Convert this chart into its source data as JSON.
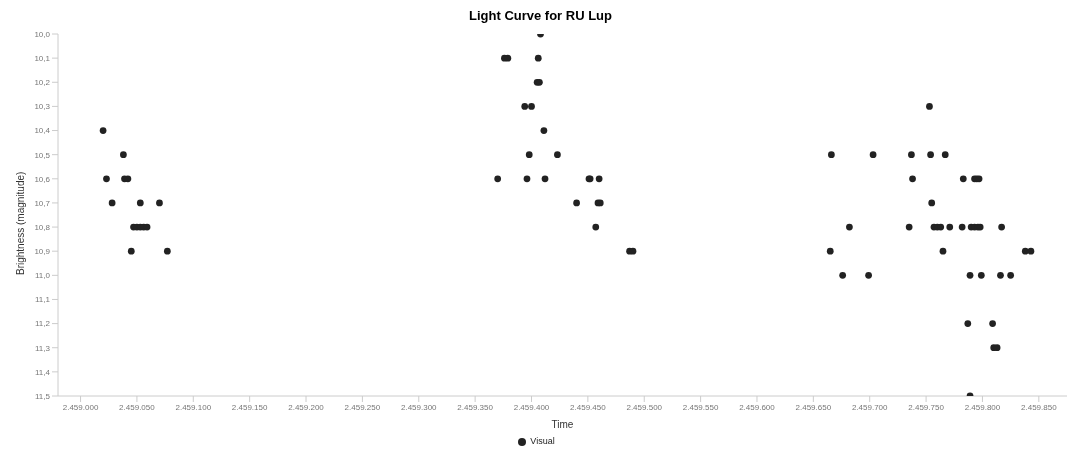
{
  "chart_data": {
    "type": "scatter",
    "title": "Light Curve for RU Lup",
    "xlabel": "Time",
    "ylabel": "Brightness (magnitude)",
    "xlim": [
      2458980,
      2459875
    ],
    "xticks": [
      {
        "value": 2459000,
        "label": "2.459.000"
      },
      {
        "value": 2459050,
        "label": "2.459.050"
      },
      {
        "value": 2459100,
        "label": "2.459.100"
      },
      {
        "value": 2459150,
        "label": "2.459.150"
      },
      {
        "value": 2459200,
        "label": "2.459.200"
      },
      {
        "value": 2459250,
        "label": "2.459.250"
      },
      {
        "value": 2459300,
        "label": "2.459.300"
      },
      {
        "value": 2459350,
        "label": "2.459.350"
      },
      {
        "value": 2459400,
        "label": "2.459.400"
      },
      {
        "value": 2459450,
        "label": "2.459.450"
      },
      {
        "value": 2459500,
        "label": "2.459.500"
      },
      {
        "value": 2459550,
        "label": "2.459.550"
      },
      {
        "value": 2459600,
        "label": "2.459.600"
      },
      {
        "value": 2459650,
        "label": "2.459.650"
      },
      {
        "value": 2459700,
        "label": "2.459.700"
      },
      {
        "value": 2459750,
        "label": "2.459.750"
      },
      {
        "value": 2459800,
        "label": "2.459.800"
      },
      {
        "value": 2459850,
        "label": "2.459.850"
      }
    ],
    "ylim": [
      11.5,
      10.0
    ],
    "yticks": [
      {
        "value": 10.0,
        "label": "10,0"
      },
      {
        "value": 10.1,
        "label": "10,1"
      },
      {
        "value": 10.2,
        "label": "10,2"
      },
      {
        "value": 10.3,
        "label": "10,3"
      },
      {
        "value": 10.4,
        "label": "10,4"
      },
      {
        "value": 10.5,
        "label": "10,5"
      },
      {
        "value": 10.6,
        "label": "10,6"
      },
      {
        "value": 10.7,
        "label": "10,7"
      },
      {
        "value": 10.8,
        "label": "10,8"
      },
      {
        "value": 10.9,
        "label": "10,9"
      },
      {
        "value": 11.0,
        "label": "11,0"
      },
      {
        "value": 11.1,
        "label": "11,1"
      },
      {
        "value": 11.2,
        "label": "11,2"
      },
      {
        "value": 11.3,
        "label": "11,3"
      },
      {
        "value": 11.4,
        "label": "11,4"
      },
      {
        "value": 11.5,
        "label": "11,5"
      }
    ],
    "grid": false,
    "legend": "bottom",
    "marker": "circle",
    "series": [
      {
        "name": "Visual",
        "color": "#222222",
        "x": [
          2459020,
          2459038,
          2459023,
          2459039,
          2459042,
          2459028,
          2459053,
          2459070,
          2459047,
          2459050,
          2459053,
          2459056,
          2459059,
          2459045,
          2459077,
          2459408,
          2459376,
          2459379,
          2459406,
          2459405,
          2459407,
          2459394,
          2459400,
          2459411,
          2459398,
          2459423,
          2459370,
          2459396,
          2459412,
          2459451,
          2459452,
          2459460,
          2459440,
          2459459,
          2459461,
          2459457,
          2459487,
          2459490,
          2459753,
          2459666,
          2459703,
          2459737,
          2459754,
          2459767,
          2459738,
          2459783,
          2459793,
          2459795,
          2459797,
          2459755,
          2459682,
          2459735,
          2459757,
          2459760,
          2459763,
          2459771,
          2459782,
          2459790,
          2459793,
          2459796,
          2459798,
          2459817,
          2459665,
          2459765,
          2459838,
          2459843,
          2459676,
          2459699,
          2459789,
          2459799,
          2459816,
          2459825,
          2459787,
          2459809,
          2459810,
          2459813,
          2459789
        ],
        "values": [
          10.4,
          10.5,
          10.6,
          10.6,
          10.6,
          10.7,
          10.7,
          10.7,
          10.8,
          10.8,
          10.8,
          10.8,
          10.8,
          10.9,
          10.9,
          10.0,
          10.1,
          10.1,
          10.1,
          10.2,
          10.2,
          10.3,
          10.3,
          10.4,
          10.5,
          10.5,
          10.6,
          10.6,
          10.6,
          10.6,
          10.6,
          10.6,
          10.7,
          10.7,
          10.7,
          10.8,
          10.9,
          10.9,
          10.3,
          10.5,
          10.5,
          10.5,
          10.5,
          10.5,
          10.6,
          10.6,
          10.6,
          10.6,
          10.6,
          10.7,
          10.8,
          10.8,
          10.8,
          10.8,
          10.8,
          10.8,
          10.8,
          10.8,
          10.8,
          10.8,
          10.8,
          10.8,
          10.9,
          10.9,
          10.9,
          10.9,
          11.0,
          11.0,
          11.0,
          11.0,
          11.0,
          11.0,
          11.2,
          11.2,
          11.3,
          11.3,
          11.5
        ]
      }
    ]
  }
}
